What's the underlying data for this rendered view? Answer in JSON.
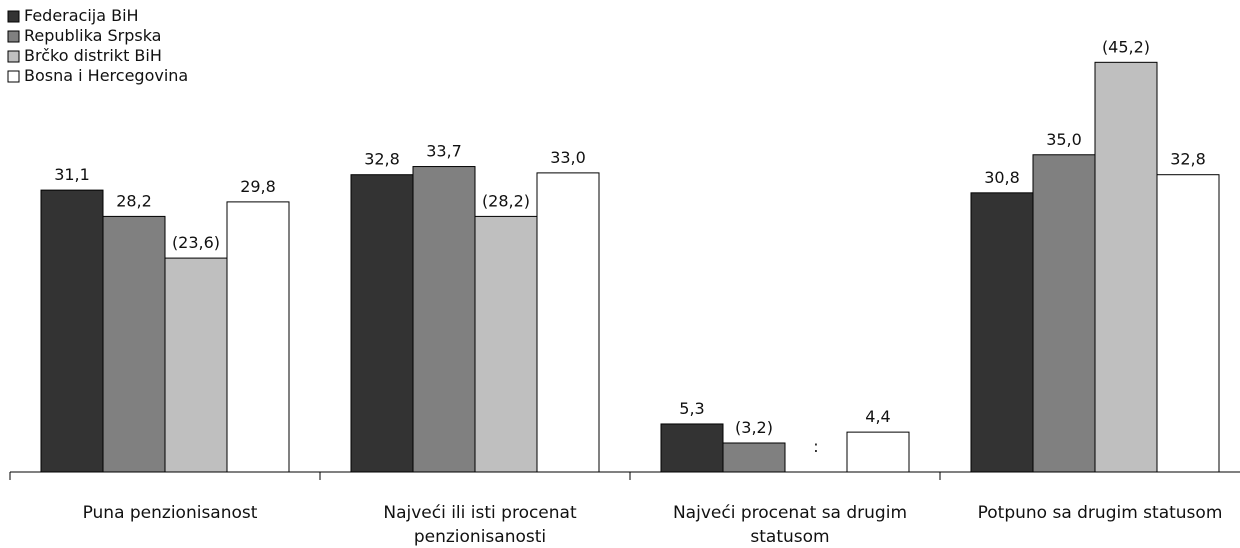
{
  "chart_data": {
    "type": "bar",
    "title": "",
    "xlabel": "",
    "ylabel": "",
    "ylim": [
      0,
      47
    ],
    "grid": false,
    "legend_position": "top-left",
    "categories": [
      [
        "Puna penzionisanost"
      ],
      [
        "Najveći ili isti procenat",
        "penzionisanosti"
      ],
      [
        "Najveći procenat sa drugim",
        "statusom"
      ],
      [
        "Potpuno sa drugim statusom"
      ]
    ],
    "series": [
      {
        "name": "Federacija BiH",
        "color": "#333333",
        "values": [
          31.1,
          32.8,
          5.3,
          30.8
        ],
        "labels": [
          "31,1",
          "32,8",
          "5,3",
          "30,8"
        ]
      },
      {
        "name": "Republika Srpska",
        "color": "#808080",
        "values": [
          28.2,
          33.7,
          3.2,
          35.0
        ],
        "labels": [
          "28,2",
          "33,7",
          "(3,2)",
          "35,0"
        ]
      },
      {
        "name": "Brčko distrikt BiH",
        "color": "#bfbfbf",
        "values": [
          23.6,
          28.2,
          null,
          45.2
        ],
        "labels": [
          "(23,6)",
          "(28,2)",
          ":",
          "(45,2)"
        ]
      },
      {
        "name": "Bosna i Hercegovina",
        "color": "#ffffff",
        "values": [
          29.8,
          33.0,
          4.4,
          32.8
        ],
        "labels": [
          "29,8",
          "33,0",
          "4,4",
          "32,8"
        ]
      }
    ]
  }
}
